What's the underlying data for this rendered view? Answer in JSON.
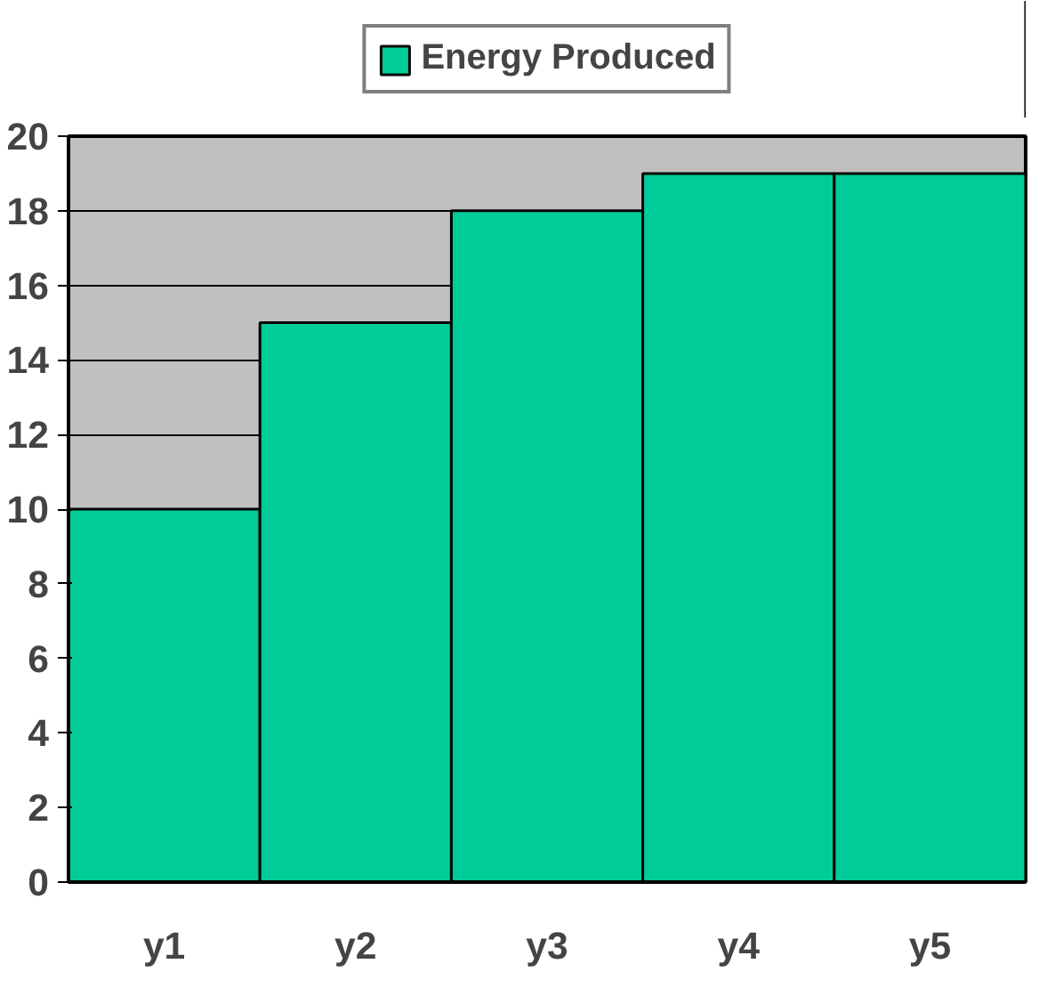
{
  "chart_data": {
    "type": "bar",
    "categories": [
      "y1",
      "y2",
      "y3",
      "y4",
      "y5"
    ],
    "series": [
      {
        "name": "Energy Produced",
        "color": "#00cc99",
        "values": [
          10,
          15,
          18,
          19,
          19
        ]
      }
    ],
    "ylim": [
      0,
      20
    ],
    "yticks": [
      0,
      2,
      4,
      6,
      8,
      10,
      12,
      14,
      16,
      18,
      20
    ],
    "grid": "y",
    "legend": "top"
  }
}
